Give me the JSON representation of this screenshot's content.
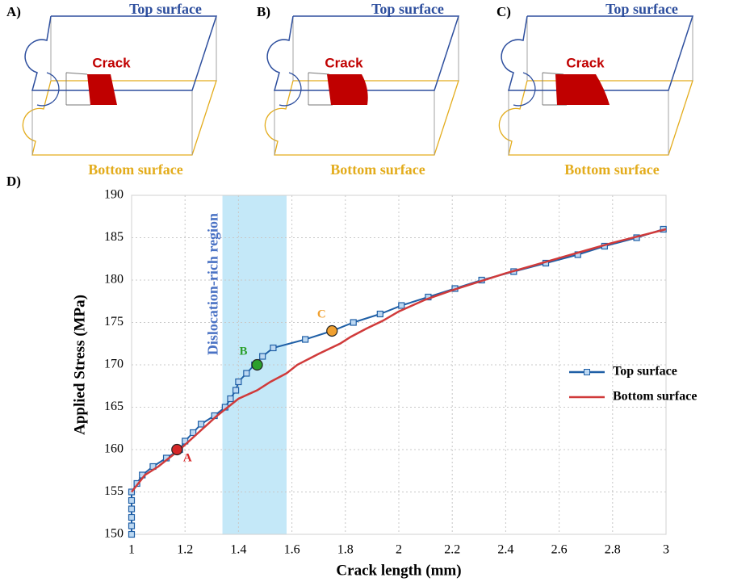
{
  "panels": [
    {
      "label": "A)",
      "top": "Top surface",
      "bottom": "Bottom surface",
      "crack": "Crack"
    },
    {
      "label": "B)",
      "top": "Top surface",
      "bottom": "Bottom surface",
      "crack": "Crack"
    },
    {
      "label": "C)",
      "top": "Top surface",
      "bottom": "Bottom surface",
      "crack": "Crack"
    }
  ],
  "chart_data": {
    "type": "line",
    "panel_label": "D)",
    "x_label": "Crack length (mm)",
    "y_label": "Applied Stress (MPa)",
    "xlim": [
      1,
      3
    ],
    "ylim": [
      150,
      190
    ],
    "xticks": [
      1,
      1.2,
      1.4,
      1.6,
      1.8,
      2,
      2.2,
      2.4,
      2.6,
      2.8,
      3
    ],
    "yticks": [
      150,
      155,
      160,
      165,
      170,
      175,
      180,
      185,
      190
    ],
    "grid": true,
    "legend": "right",
    "shaded_region": {
      "xlim": [
        1.34,
        1.58
      ],
      "label": "Dislocation-rich region",
      "color": "#c4e8f8"
    },
    "series": [
      {
        "name": "Top surface",
        "color": "#1f5fa6",
        "marker": "square",
        "x": [
          1,
          1,
          1,
          1,
          1,
          1,
          1.02,
          1.04,
          1.08,
          1.13,
          1.18,
          1.2,
          1.23,
          1.26,
          1.31,
          1.35,
          1.37,
          1.39,
          1.4,
          1.43,
          1.46,
          1.49,
          1.53,
          1.65,
          1.75,
          1.83,
          1.93,
          2.01,
          2.11,
          2.21,
          2.31,
          2.43,
          2.55,
          2.67,
          2.77,
          2.89,
          2.99
        ],
        "values": [
          150,
          151,
          152,
          153,
          154,
          155,
          156,
          157,
          158,
          159,
          160,
          161,
          162,
          163,
          164,
          165,
          166,
          167,
          168,
          169,
          170,
          171,
          172,
          173,
          174,
          175,
          176,
          177,
          178,
          179,
          180,
          181,
          182,
          183,
          184,
          185,
          186
        ]
      },
      {
        "name": "Bottom surface",
        "color": "#d03a3a",
        "x": [
          1,
          1.05,
          1.1,
          1.18,
          1.25,
          1.32,
          1.4,
          1.47,
          1.52,
          1.58,
          1.62,
          1.7,
          1.78,
          1.82,
          1.88,
          1.94,
          2,
          2.1,
          2.2,
          2.3,
          2.4,
          2.5,
          2.6,
          2.7,
          2.8,
          2.9,
          3
        ],
        "values": [
          155,
          157,
          158,
          160,
          162,
          164,
          166,
          167,
          168,
          169,
          170,
          171.3,
          172.5,
          173.3,
          174.3,
          175.2,
          176.3,
          177.7,
          178.8,
          179.8,
          180.8,
          181.7,
          182.6,
          183.5,
          184.4,
          185.2,
          186
        ]
      }
    ],
    "annotations": [
      {
        "label": "A",
        "x": 1.17,
        "y": 160,
        "color": "#d62728"
      },
      {
        "label": "B",
        "x": 1.47,
        "y": 170,
        "color": "#2ca02c"
      },
      {
        "label": "C",
        "x": 1.75,
        "y": 174,
        "color": "#f0a030"
      }
    ]
  }
}
